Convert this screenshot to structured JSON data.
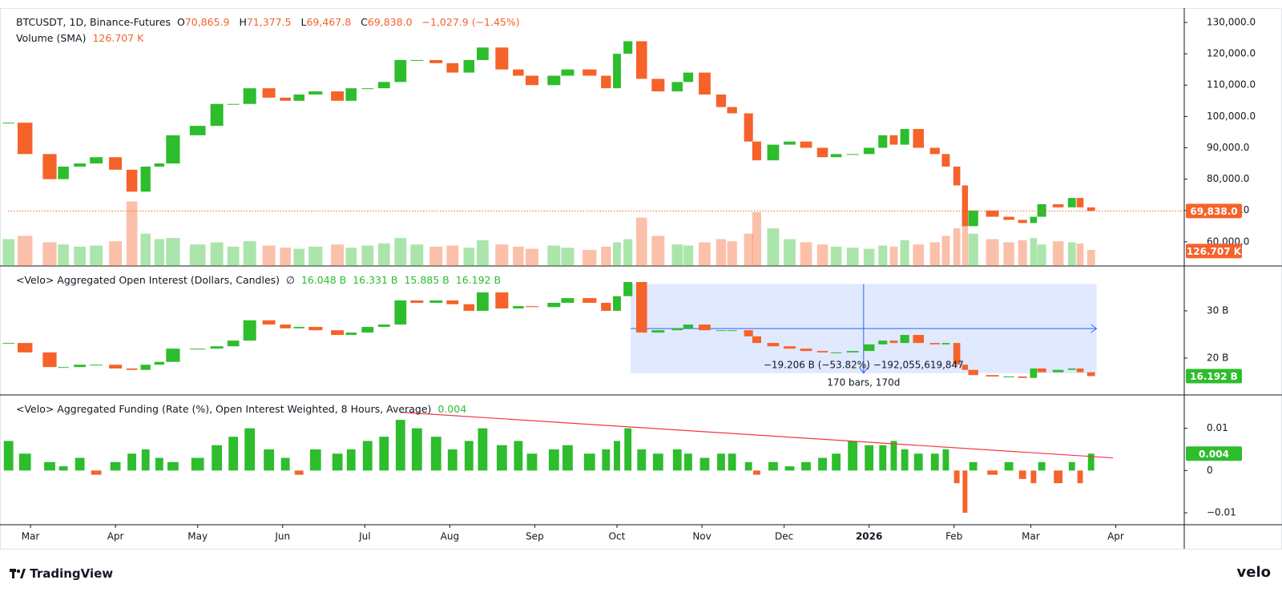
{
  "chart_data": [
    {
      "type": "candlestick",
      "title": "BTCUSDT, 1D, Binance-Futures",
      "ohlc_labels": [
        "O",
        "H",
        "L",
        "C"
      ],
      "ohlc_value_labels": [
        "70,865.9",
        "71,377.5",
        "69,467.8",
        "69,838.0"
      ],
      "change_label": "−1,027.9 (−1.45%)",
      "x": [
        -8,
        -2,
        7,
        12,
        18,
        24,
        31,
        37,
        42,
        47,
        52,
        61,
        68,
        74,
        80,
        87,
        93,
        98,
        104,
        112,
        117,
        123,
        129,
        135,
        141,
        148,
        154,
        160,
        165,
        172,
        178,
        183,
        191,
        196,
        204,
        210,
        214,
        218,
        223,
        229,
        236,
        240,
        246,
        252,
        256,
        262,
        265,
        271,
        277,
        283,
        289,
        294,
        300,
        306,
        311,
        315,
        319,
        324,
        330,
        334,
        338,
        341,
        344,
        351,
        357,
        362,
        366,
        369,
        375,
        380,
        383,
        387
      ],
      "values": [
        98000,
        88000,
        80000,
        84000,
        85000,
        87000,
        83000,
        76000,
        84000,
        85000,
        94000,
        97000,
        104000,
        104000,
        109000,
        106000,
        105000,
        107000,
        108000,
        105000,
        109000,
        109000,
        111000,
        118000,
        118000,
        117000,
        114000,
        118000,
        122000,
        115000,
        113000,
        110000,
        113000,
        115000,
        113000,
        109000,
        120000,
        124000,
        112000,
        108000,
        111000,
        114000,
        107000,
        103000,
        101000,
        92000,
        86000,
        91000,
        92000,
        90000,
        87000,
        88000,
        88000,
        90000,
        94000,
        91000,
        96000,
        90000,
        88000,
        84000,
        78000,
        65000,
        70000,
        68000,
        67000,
        66000,
        68000,
        72000,
        71000,
        74000,
        71000,
        69838
      ],
      "up_color": "#2dbd2d",
      "down_color": "#f5622a",
      "volume": {
        "name": "Volume (SMA)",
        "sma": 126.707,
        "sma_label": "126.707 K",
        "values": [
          250,
          280,
          220,
          200,
          180,
          190,
          230,
          600,
          300,
          250,
          260,
          200,
          220,
          180,
          230,
          190,
          170,
          160,
          180,
          200,
          170,
          190,
          210,
          260,
          200,
          180,
          190,
          170,
          240,
          200,
          180,
          160,
          190,
          170,
          150,
          180,
          220,
          250,
          450,
          280,
          200,
          190,
          220,
          250,
          230,
          300,
          500,
          350,
          250,
          220,
          200,
          180,
          170,
          160,
          190,
          180,
          240,
          200,
          220,
          280,
          350,
          550,
          300,
          250,
          220,
          240,
          260,
          200,
          230,
          220,
          210,
          150
        ],
        "ylim": [
          0,
          2400
        ]
      },
      "last_price": {
        "value": 69838,
        "label": "69,838.0"
      },
      "ylim": [
        52300,
        134600
      ],
      "yticks": [
        {
          "value": 130000,
          "label": "130,000.0"
        },
        {
          "value": 120000,
          "label": "120,000.0"
        },
        {
          "value": 110000,
          "label": "110,000.0"
        },
        {
          "value": 100000,
          "label": "100,000.0"
        },
        {
          "value": 90000,
          "label": "90,000.0"
        },
        {
          "value": 80000,
          "label": "80,000.0"
        },
        {
          "value": 70000,
          "label": "70,000.0"
        },
        {
          "value": 60000,
          "label": "60,000.0"
        }
      ],
      "xlim": [
        -8.2,
        421
      ],
      "xticks": [
        {
          "value": 0,
          "label": "Mar"
        },
        {
          "value": 31,
          "label": "Apr"
        },
        {
          "value": 61,
          "label": "May"
        },
        {
          "value": 92,
          "label": "Jun"
        },
        {
          "value": 122,
          "label": "Jul"
        },
        {
          "value": 153,
          "label": "Aug"
        },
        {
          "value": 184,
          "label": "Sep"
        },
        {
          "value": 214,
          "label": "Oct"
        },
        {
          "value": 245,
          "label": "Nov"
        },
        {
          "value": 275,
          "label": "Dec"
        },
        {
          "value": 306,
          "label": "2026"
        },
        {
          "value": 337,
          "label": "Feb"
        },
        {
          "value": 365,
          "label": "Mar"
        },
        {
          "value": 396,
          "label": "Apr"
        }
      ],
      "grid": false
    },
    {
      "type": "candlestick",
      "title": "<Velo> Aggregated Open Interest (Dollars, Candles)",
      "symbol": "∅",
      "ohlc_value_labels": [
        "16.048 B",
        "16.331 B",
        "15.885 B",
        "16.192 B"
      ],
      "values": [
        23.2,
        21.2,
        18.1,
        18.1,
        18.6,
        18.6,
        17.8,
        17.5,
        18.6,
        19.2,
        22.0,
        22.0,
        22.5,
        23.7,
        28.0,
        27.1,
        26.3,
        26.6,
        25.9,
        24.9,
        25.4,
        26.6,
        27.1,
        32.2,
        31.7,
        32.2,
        31.4,
        30.0,
        33.9,
        30.5,
        31.0,
        30.8,
        31.7,
        32.7,
        31.7,
        30.0,
        33.1,
        36.1,
        25.4,
        25.9,
        26.3,
        27.1,
        25.9,
        25.9,
        25.9,
        24.6,
        23.2,
        22.5,
        22.0,
        21.5,
        21.2,
        21.2,
        21.5,
        22.9,
        23.7,
        23.2,
        24.9,
        23.2,
        22.9,
        23.2,
        18.6,
        17.5,
        16.4,
        16.1,
        16.1,
        15.8,
        17.8,
        17.0,
        17.5,
        17.8,
        17.0,
        16.192
      ],
      "last": {
        "value": 16.192,
        "label": "16.192 B"
      },
      "ylim": [
        12.2,
        39.5
      ],
      "yticks": [
        {
          "value": 30,
          "label": "30 B"
        },
        {
          "value": 20,
          "label": "20 B"
        }
      ],
      "measure": {
        "x": [
          219,
          389
        ],
        "values": [
          35.7,
          16.8
        ],
        "labels": [
          "−19.206 B (−53.82%) −192,055,619,847",
          "170 bars, 170d"
        ],
        "color": "#2962ff"
      }
    },
    {
      "type": "bar",
      "title": "<Velo> Aggregated Funding (Rate (%), Open Interest Weighted, 8 Hours, Average)",
      "values": [
        0.007,
        0.004,
        0.002,
        0.001,
        0.003,
        -0.001,
        0.002,
        0.004,
        0.005,
        0.003,
        0.002,
        0.003,
        0.006,
        0.008,
        0.01,
        0.005,
        0.003,
        -0.001,
        0.005,
        0.004,
        0.005,
        0.007,
        0.008,
        0.012,
        0.01,
        0.008,
        0.005,
        0.007,
        0.01,
        0.006,
        0.007,
        0.004,
        0.005,
        0.006,
        0.004,
        0.005,
        0.007,
        0.01,
        0.005,
        0.004,
        0.005,
        0.004,
        0.003,
        0.004,
        0.004,
        0.002,
        -0.001,
        0.002,
        0.001,
        0.002,
        0.003,
        0.004,
        0.007,
        0.006,
        0.006,
        0.007,
        0.005,
        0.004,
        0.004,
        0.005,
        -0.003,
        -0.01,
        0.002,
        -0.001,
        0.002,
        -0.002,
        -0.003,
        0.002,
        -0.003,
        0.002,
        -0.003,
        0.004
      ],
      "last": 0.004,
      "ylim": [
        -0.01283,
        0.0179
      ],
      "yticks": [
        0.01,
        0,
        {
          "value": -0.01,
          "label": "−0.01"
        }
      ],
      "trendline": {
        "x": [
          135,
          395
        ],
        "values": [
          0.0138,
          0.003
        ],
        "color": "#f23645"
      }
    }
  ],
  "footer": {
    "brand": "TradingView",
    "source": "velo"
  }
}
